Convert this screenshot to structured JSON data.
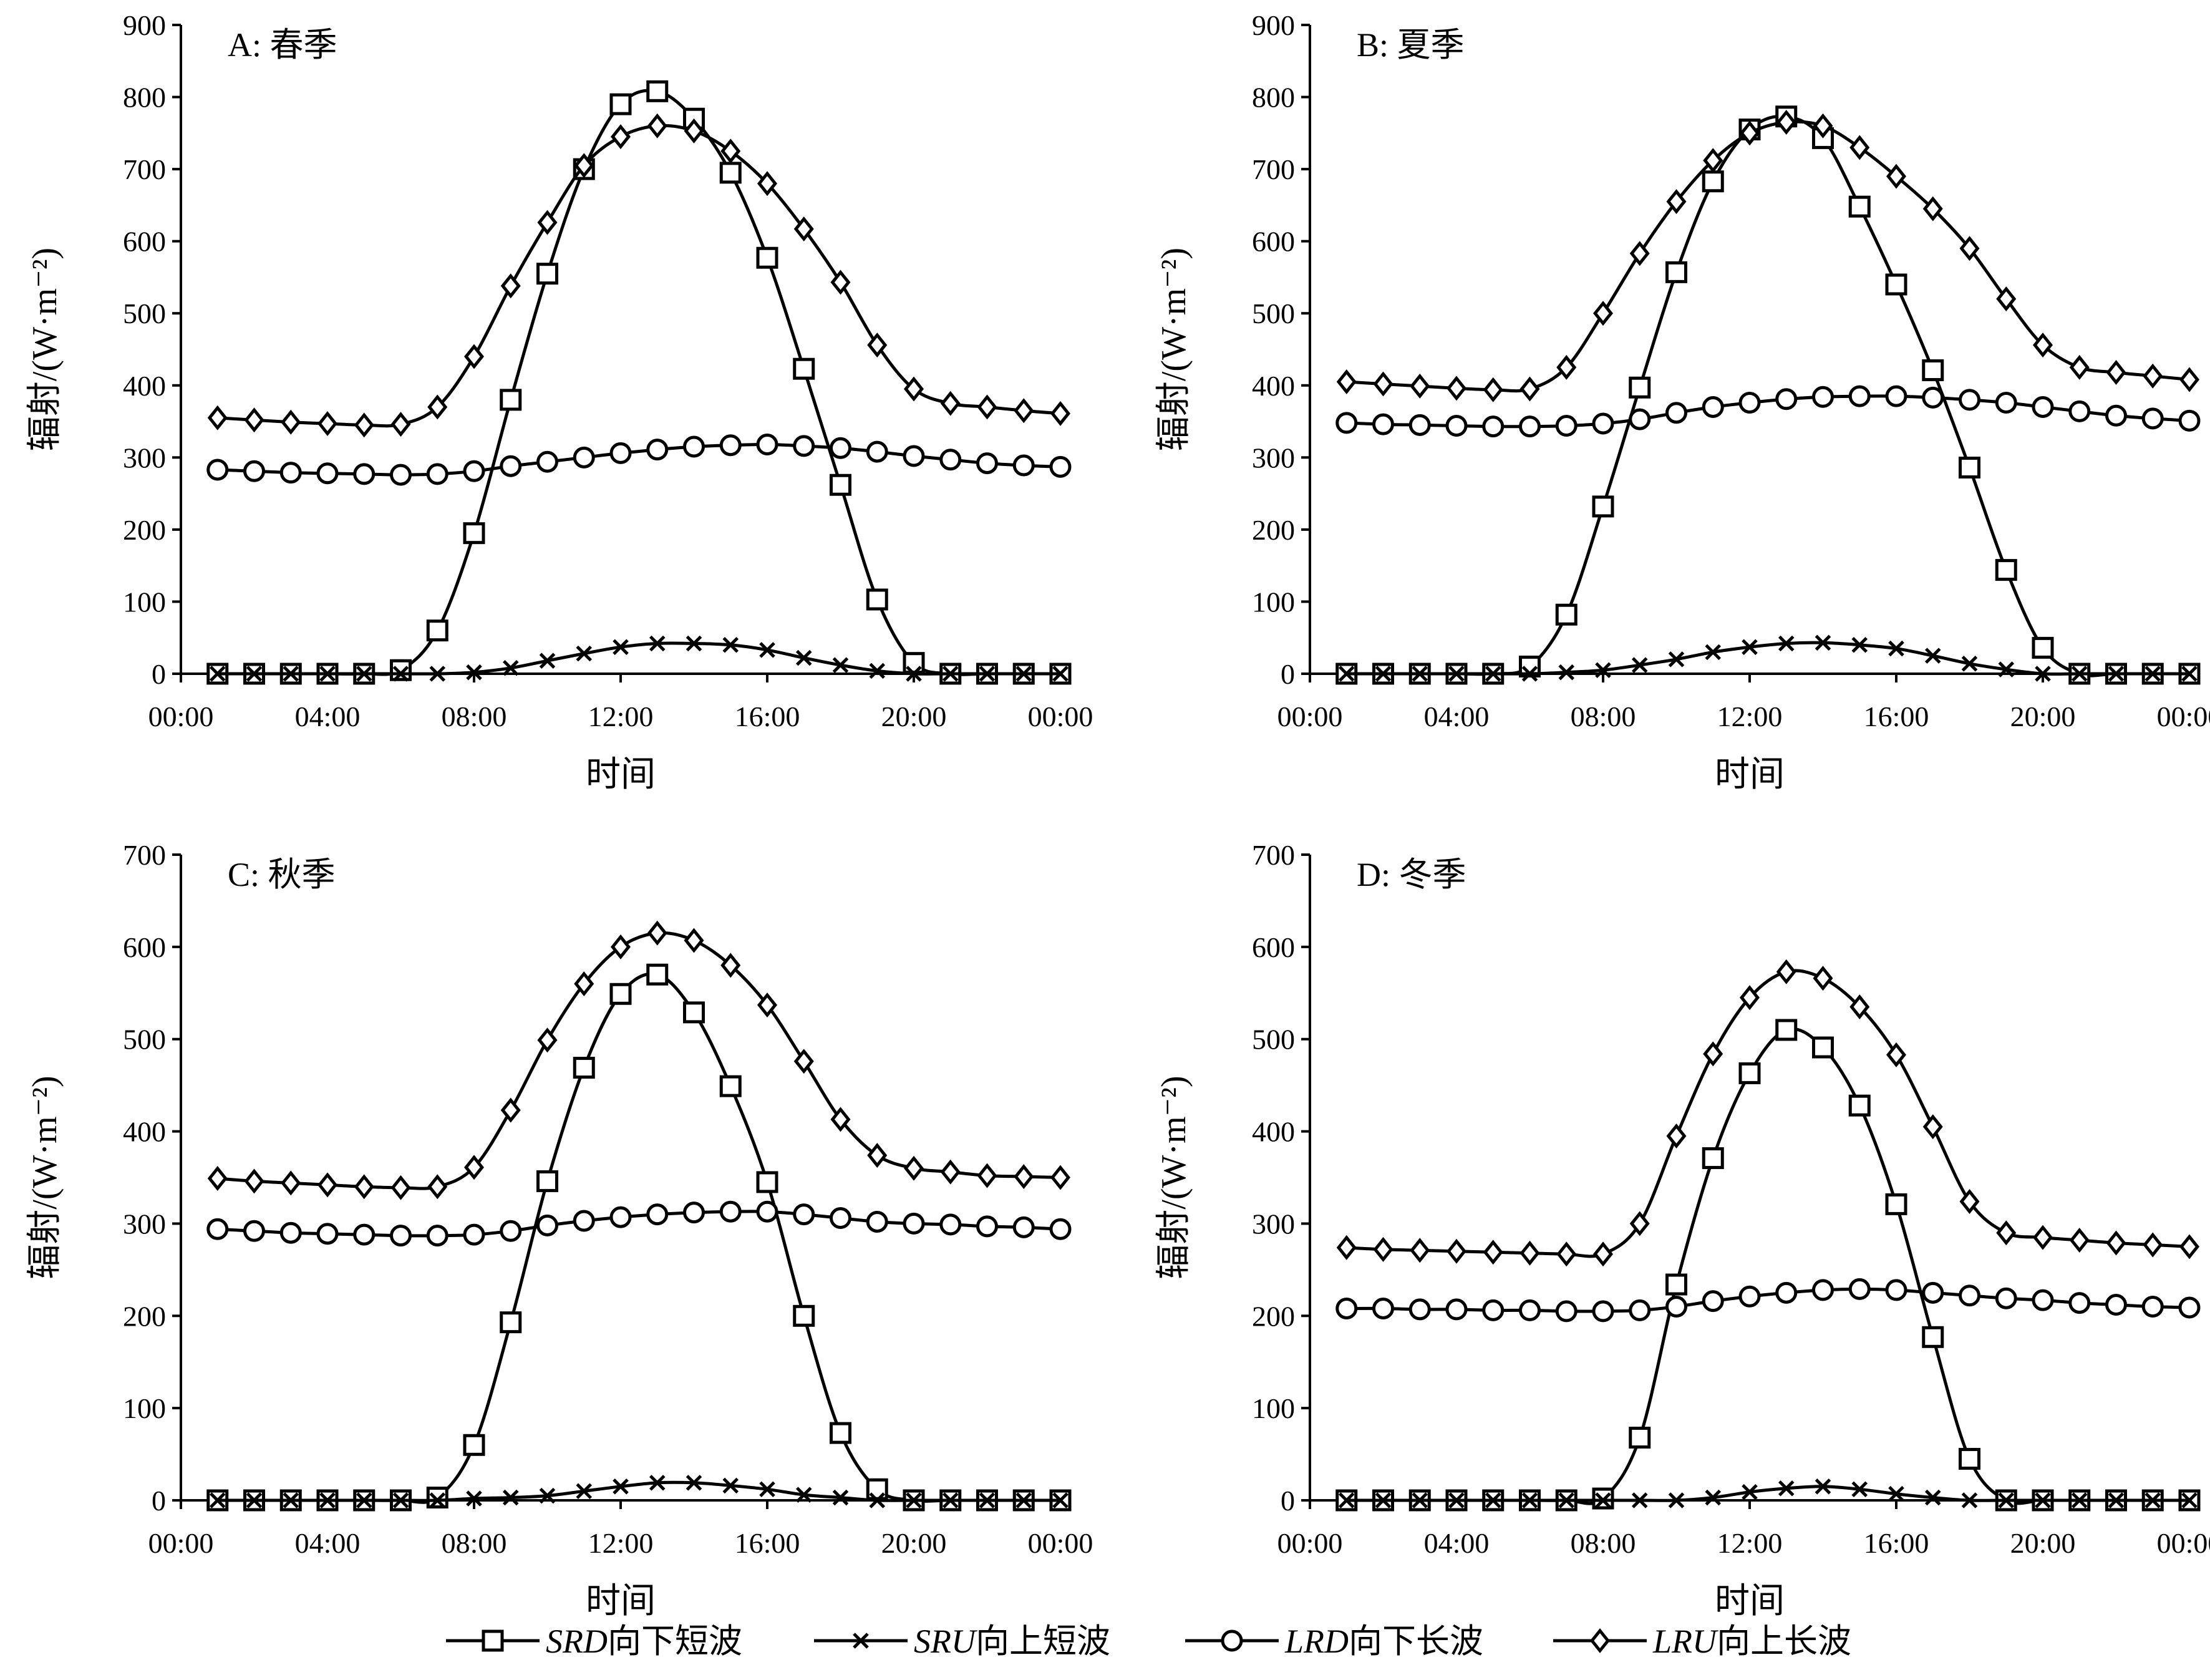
{
  "chart_data": [
    {
      "type": "line",
      "title": "A: 春季",
      "xlabel": "时间",
      "ylabel": "辐射/(W·m⁻²)",
      "xticks": [
        "00:00",
        "04:00",
        "08:00",
        "12:00",
        "16:00",
        "20:00",
        "00:00"
      ],
      "ylim": [
        0,
        900
      ],
      "yticks": [
        0,
        100,
        200,
        300,
        400,
        500,
        600,
        700,
        800,
        900
      ],
      "x": [
        "01:00",
        "02:00",
        "03:00",
        "04:00",
        "05:00",
        "06:00",
        "07:00",
        "08:00",
        "09:00",
        "10:00",
        "11:00",
        "12:00",
        "13:00",
        "14:00",
        "15:00",
        "16:00",
        "17:00",
        "18:00",
        "19:00",
        "20:00",
        "21:00",
        "22:00",
        "23:00",
        "24:00"
      ],
      "series": [
        {
          "name": "SRD向下短波",
          "values": [
            0,
            0,
            0,
            0,
            0,
            5,
            60,
            195,
            380,
            555,
            700,
            790,
            808,
            770,
            695,
            577,
            423,
            262,
            103,
            15,
            0,
            0,
            0,
            0
          ]
        },
        {
          "name": "SRU向上短波",
          "values": [
            0,
            0,
            0,
            0,
            0,
            0,
            0,
            2,
            8,
            18,
            28,
            37,
            42,
            42,
            40,
            33,
            22,
            12,
            4,
            0,
            0,
            0,
            0,
            0
          ]
        },
        {
          "name": "LRD向下长波",
          "values": [
            283,
            281,
            279,
            278,
            277,
            276,
            277,
            281,
            288,
            294,
            300,
            306,
            311,
            315,
            317,
            318,
            316,
            313,
            308,
            302,
            297,
            292,
            289,
            287
          ]
        },
        {
          "name": "LRU向上长波",
          "values": [
            355,
            352,
            349,
            347,
            345,
            346,
            370,
            440,
            538,
            626,
            705,
            745,
            760,
            753,
            725,
            680,
            617,
            543,
            456,
            395,
            375,
            370,
            365,
            361
          ]
        }
      ]
    },
    {
      "type": "line",
      "title": "B: 夏季",
      "xlabel": "时间",
      "ylabel": "辐射/(W·m⁻²)",
      "xticks": [
        "00:00",
        "04:00",
        "08:00",
        "12:00",
        "16:00",
        "20:00",
        "00:00"
      ],
      "ylim": [
        0,
        900
      ],
      "yticks": [
        0,
        100,
        200,
        300,
        400,
        500,
        600,
        700,
        800,
        900
      ],
      "x": [
        "01:00",
        "02:00",
        "03:00",
        "04:00",
        "05:00",
        "06:00",
        "07:00",
        "08:00",
        "09:00",
        "10:00",
        "11:00",
        "12:00",
        "13:00",
        "14:00",
        "15:00",
        "16:00",
        "17:00",
        "18:00",
        "19:00",
        "20:00",
        "21:00",
        "22:00",
        "23:00",
        "24:00"
      ],
      "series": [
        {
          "name": "SRD向下短波",
          "values": [
            0,
            0,
            0,
            0,
            0,
            10,
            82,
            232,
            397,
            557,
            683,
            755,
            773,
            743,
            648,
            540,
            421,
            286,
            144,
            36,
            0,
            0,
            0,
            0
          ]
        },
        {
          "name": "SRU向上短波",
          "values": [
            0,
            0,
            0,
            0,
            0,
            0,
            2,
            5,
            12,
            20,
            30,
            37,
            42,
            43,
            40,
            35,
            25,
            14,
            6,
            0,
            0,
            0,
            0,
            0
          ]
        },
        {
          "name": "LRD向下长波",
          "values": [
            348,
            346,
            345,
            344,
            343,
            343,
            344,
            347,
            353,
            362,
            370,
            376,
            381,
            384,
            385,
            385,
            383,
            380,
            376,
            370,
            364,
            358,
            354,
            351
          ]
        },
        {
          "name": "LRU向上长波",
          "values": [
            405,
            402,
            399,
            396,
            394,
            395,
            425,
            500,
            583,
            655,
            712,
            750,
            765,
            760,
            730,
            690,
            645,
            590,
            520,
            456,
            425,
            418,
            413,
            408
          ]
        }
      ]
    },
    {
      "type": "line",
      "title": "C: 秋季",
      "xlabel": "时间",
      "ylabel": "辐射/(W·m⁻²)",
      "xticks": [
        "00:00",
        "04:00",
        "08:00",
        "12:00",
        "16:00",
        "20:00",
        "00:00"
      ],
      "ylim": [
        0,
        700
      ],
      "yticks": [
        0,
        100,
        200,
        300,
        400,
        500,
        600,
        700
      ],
      "x": [
        "01:00",
        "02:00",
        "03:00",
        "04:00",
        "05:00",
        "06:00",
        "07:00",
        "08:00",
        "09:00",
        "10:00",
        "11:00",
        "12:00",
        "13:00",
        "14:00",
        "15:00",
        "16:00",
        "17:00",
        "18:00",
        "19:00",
        "20:00",
        "21:00",
        "22:00",
        "23:00",
        "24:00"
      ],
      "series": [
        {
          "name": "SRD向下短波",
          "values": [
            0,
            0,
            0,
            0,
            0,
            0,
            3,
            60,
            193,
            346,
            469,
            549,
            570,
            529,
            449,
            345,
            200,
            73,
            12,
            0,
            0,
            0,
            0,
            0
          ]
        },
        {
          "name": "SRU向上短波",
          "values": [
            0,
            0,
            0,
            0,
            0,
            0,
            0,
            2,
            3,
            5,
            10,
            15,
            19,
            19,
            16,
            12,
            6,
            3,
            0,
            0,
            0,
            0,
            0,
            0
          ]
        },
        {
          "name": "LRD向下长波",
          "values": [
            294,
            292,
            290,
            289,
            288,
            287,
            287,
            288,
            292,
            298,
            303,
            307,
            310,
            312,
            313,
            313,
            310,
            306,
            302,
            300,
            299,
            297,
            296,
            294
          ]
        },
        {
          "name": "LRU向上长波",
          "values": [
            349,
            346,
            344,
            342,
            340,
            339,
            340,
            361,
            423,
            499,
            560,
            600,
            615,
            607,
            580,
            537,
            476,
            413,
            374,
            360,
            356,
            352,
            351,
            350
          ]
        }
      ]
    },
    {
      "type": "line",
      "title": "D: 冬季",
      "xlabel": "时间",
      "ylabel": "辐射/(W·m⁻²)",
      "xticks": [
        "00:00",
        "04:00",
        "08:00",
        "12:00",
        "16:00",
        "20:00",
        "00:00"
      ],
      "ylim": [
        0,
        700
      ],
      "yticks": [
        0,
        100,
        200,
        300,
        400,
        500,
        600,
        700
      ],
      "x": [
        "01:00",
        "02:00",
        "03:00",
        "04:00",
        "05:00",
        "06:00",
        "07:00",
        "08:00",
        "09:00",
        "10:00",
        "11:00",
        "12:00",
        "13:00",
        "14:00",
        "15:00",
        "16:00",
        "17:00",
        "18:00",
        "19:00",
        "20:00",
        "21:00",
        "22:00",
        "23:00",
        "24:00"
      ],
      "series": [
        {
          "name": "SRD向下短波",
          "values": [
            0,
            0,
            0,
            0,
            0,
            0,
            0,
            2,
            68,
            234,
            371,
            463,
            510,
            491,
            428,
            321,
            177,
            45,
            0,
            0,
            0,
            0,
            0,
            0
          ]
        },
        {
          "name": "SRU向上短波",
          "values": [
            0,
            0,
            0,
            0,
            0,
            0,
            0,
            0,
            0,
            0,
            3,
            9,
            13,
            15,
            12,
            7,
            3,
            0,
            0,
            0,
            0,
            0,
            0,
            0
          ]
        },
        {
          "name": "LRD向下长波",
          "values": [
            208,
            208,
            207,
            207,
            206,
            206,
            205,
            205,
            206,
            210,
            216,
            221,
            225,
            228,
            229,
            228,
            225,
            222,
            219,
            217,
            214,
            212,
            210,
            209
          ]
        },
        {
          "name": "LRU向上长波",
          "values": [
            274,
            272,
            271,
            270,
            269,
            268,
            267,
            267,
            300,
            395,
            484,
            545,
            573,
            566,
            535,
            483,
            405,
            324,
            290,
            285,
            282,
            279,
            277,
            275
          ]
        }
      ]
    }
  ],
  "legend": [
    {
      "code": "SRD",
      "label": "向下短波",
      "marker": "square"
    },
    {
      "code": "SRU",
      "label": "向上短波",
      "marker": "x"
    },
    {
      "code": "LRD",
      "label": "向下长波",
      "marker": "circle"
    },
    {
      "code": "LRU",
      "label": "向上长波",
      "marker": "diamond"
    }
  ]
}
